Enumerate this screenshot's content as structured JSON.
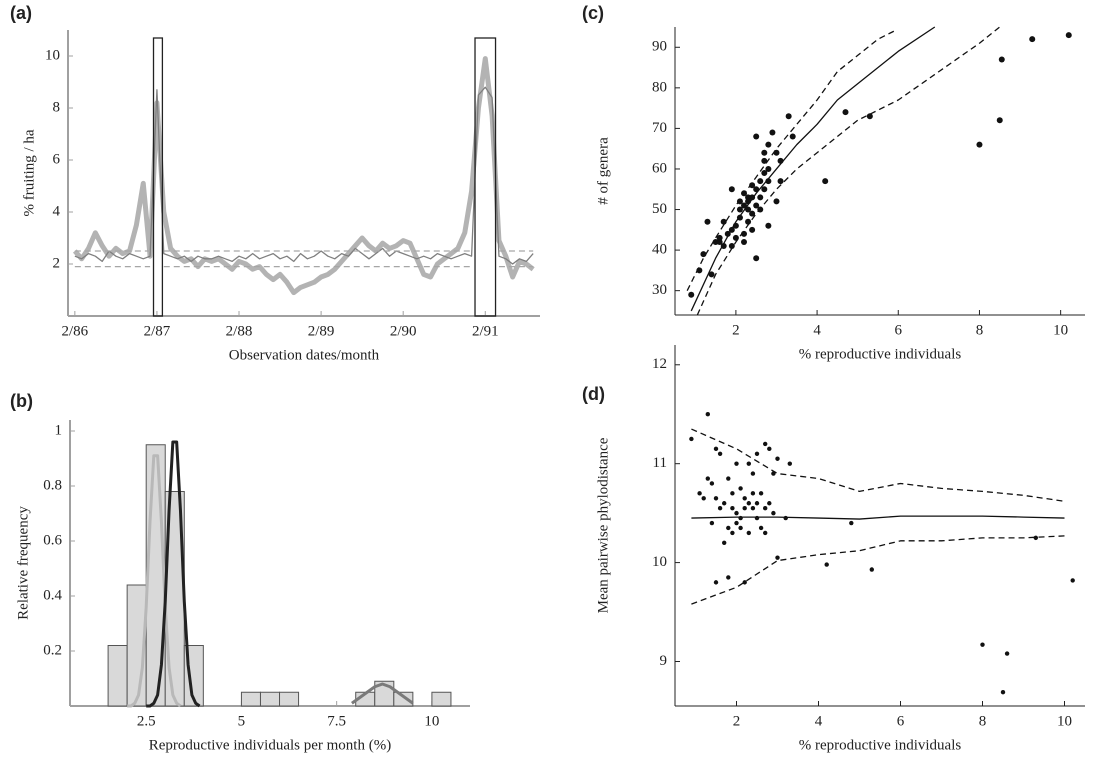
{
  "chart_data": [
    {
      "type": "line",
      "panel_label": "(a)",
      "x_label": "Observation dates/month",
      "y_label": "% fruiting / ha",
      "x": [
        0,
        1,
        2,
        3,
        4,
        5,
        6,
        7,
        8,
        9,
        10,
        11,
        12,
        13,
        14,
        15,
        16,
        17,
        18,
        19,
        20,
        21,
        22,
        23,
        24,
        25,
        26,
        27,
        28,
        29,
        30,
        31,
        32,
        33,
        34,
        35,
        36,
        37,
        38,
        39,
        40,
        41,
        42,
        43,
        44,
        45,
        46,
        47,
        48,
        49,
        50,
        51,
        52,
        53,
        54,
        55,
        56,
        57,
        58,
        59,
        60,
        61,
        62,
        63,
        64,
        65,
        66,
        67
      ],
      "xlim": [
        -1,
        68
      ],
      "xticks": [
        {
          "value": 0,
          "label": "2/86"
        },
        {
          "value": 12,
          "label": "2/87"
        },
        {
          "value": 24,
          "label": "2/88"
        },
        {
          "value": 36,
          "label": "2/89"
        },
        {
          "value": 48,
          "label": "2/90"
        },
        {
          "value": 60,
          "label": "2/91"
        }
      ],
      "ylim": [
        0,
        11
      ],
      "yticks": [
        2,
        4,
        6,
        8,
        10
      ],
      "highlights": [
        [
          11.5,
          12.8
        ],
        [
          58.5,
          61.5
        ]
      ],
      "series": [
        {
          "color": "#b3b3b3",
          "line_style": "thick",
          "values": [
            2.5,
            2.2,
            2.6,
            3.2,
            2.7,
            2.3,
            2.6,
            2.4,
            2.5,
            3.5,
            5.1,
            2.3,
            8.2,
            4.0,
            2.6,
            2.3,
            2.1,
            2.2,
            1.9,
            2.2,
            2.1,
            2.2,
            2.0,
            1.8,
            2.1,
            2.0,
            1.8,
            1.9,
            1.6,
            1.4,
            1.6,
            1.3,
            0.9,
            1.1,
            1.2,
            1.3,
            1.5,
            1.6,
            1.8,
            2.1,
            2.4,
            2.7,
            3.0,
            2.7,
            2.5,
            2.8,
            2.6,
            2.7,
            2.9,
            2.8,
            2.2,
            1.6,
            1.5,
            2.0,
            2.2,
            2.4,
            2.6,
            3.2,
            4.8,
            8.0,
            9.9,
            7.7,
            2.9,
            2.3,
            1.5,
            2.1,
            2.0,
            1.8
          ]
        },
        {
          "color": "#7f7f7f",
          "line_style": "thin",
          "values": [
            2.3,
            2.2,
            2.4,
            2.3,
            2.1,
            2.5,
            2.3,
            2.2,
            2.4,
            2.3,
            2.2,
            2.3,
            8.7,
            2.4,
            2.3,
            2.2,
            2.3,
            2.1,
            2.3,
            2.2,
            2.2,
            2.3,
            2.2,
            2.1,
            2.3,
            2.2,
            2.4,
            2.2,
            2.3,
            2.4,
            2.2,
            2.3,
            2.1,
            2.4,
            2.2,
            2.3,
            2.5,
            2.3,
            2.2,
            2.4,
            2.3,
            2.6,
            2.4,
            2.2,
            2.4,
            2.6,
            2.3,
            2.5,
            2.4,
            2.3,
            2.2,
            2.3,
            2.2,
            2.4,
            2.3,
            2.2,
            2.3,
            2.4,
            2.3,
            8.5,
            8.8,
            8.4,
            2.3,
            2.2,
            2.0,
            2.2,
            2.1,
            2.4
          ]
        },
        {
          "color": "#a6a6a6",
          "line_style": "dashed",
          "values": [
            2.5,
            2.5,
            2.5,
            2.5,
            2.5,
            2.5,
            2.5,
            2.5,
            2.5,
            2.5,
            2.5,
            2.5,
            null,
            2.5,
            2.5,
            2.5,
            2.5,
            2.5,
            2.5,
            2.5,
            2.5,
            2.5,
            2.5,
            2.5,
            2.5,
            2.5,
            2.5,
            2.5,
            2.5,
            2.5,
            2.5,
            2.5,
            2.5,
            2.5,
            2.5,
            2.5,
            2.5,
            2.5,
            2.5,
            2.5,
            2.5,
            2.5,
            2.5,
            2.5,
            2.5,
            2.5,
            2.5,
            2.5,
            2.5,
            2.5,
            2.5,
            2.5,
            2.5,
            2.5,
            2.5,
            2.5,
            2.5,
            2.5,
            2.5,
            null,
            null,
            null,
            2.5,
            2.5,
            2.5,
            2.5,
            2.5,
            2.5
          ]
        },
        {
          "color": "#a6a6a6",
          "line_style": "dashed",
          "values": [
            1.9,
            1.9,
            1.9,
            1.9,
            1.9,
            1.9,
            1.9,
            1.9,
            1.9,
            1.9,
            1.9,
            1.9,
            null,
            1.9,
            1.9,
            1.9,
            1.9,
            1.9,
            1.9,
            1.9,
            1.9,
            1.9,
            1.9,
            1.9,
            1.9,
            1.9,
            1.9,
            1.9,
            1.9,
            1.9,
            1.9,
            1.9,
            1.9,
            1.9,
            1.9,
            1.9,
            1.9,
            1.9,
            1.9,
            1.9,
            1.9,
            1.9,
            1.9,
            1.9,
            1.9,
            1.9,
            1.9,
            1.9,
            1.9,
            1.9,
            1.9,
            1.9,
            1.9,
            1.9,
            1.9,
            1.9,
            1.9,
            1.9,
            1.9,
            null,
            null,
            null,
            1.9,
            1.9,
            1.9,
            1.9,
            1.9,
            1.9
          ]
        }
      ]
    },
    {
      "type": "histogram",
      "panel_label": "(b)",
      "x_label": "Reproductive individuals per month (%)",
      "y_label": "Relative frequency",
      "bins": [
        1.5,
        2.0,
        2.5,
        3.0,
        3.5,
        4.0,
        4.5,
        5.0,
        5.5,
        6.0,
        6.5,
        7.0,
        7.5,
        8.0,
        8.5,
        9.0,
        9.5,
        10.0,
        10.5
      ],
      "values": [
        0.22,
        0.44,
        0.95,
        0.78,
        0.22,
        0,
        0,
        0.05,
        0.05,
        0.05,
        0,
        0,
        0,
        0.05,
        0.09,
        0.05,
        0,
        0.05
      ],
      "color": "#d9d9d9",
      "xlim": [
        0.5,
        11
      ],
      "xticks": [
        2.5,
        5,
        7.5,
        10
      ],
      "ylim": [
        0,
        1.04
      ],
      "yticks": [
        0.2,
        0.4,
        0.6,
        0.8,
        1
      ],
      "curves": [
        {
          "color": "#b8b8b8",
          "x": [
            2.0,
            2.1,
            2.2,
            2.3,
            2.4,
            2.5,
            2.6,
            2.7,
            2.8,
            2.9,
            3.0,
            3.1,
            3.2,
            3.3,
            3.4
          ],
          "values": [
            0,
            0,
            0.01,
            0.04,
            0.14,
            0.36,
            0.67,
            0.91,
            0.91,
            0.67,
            0.36,
            0.14,
            0.04,
            0.01,
            0
          ]
        },
        {
          "color": "#222222",
          "x": [
            2.5,
            2.6,
            2.7,
            2.8,
            2.9,
            3.0,
            3.1,
            3.2,
            3.3,
            3.4,
            3.5,
            3.6,
            3.7,
            3.8,
            3.9
          ],
          "values": [
            0,
            0,
            0.01,
            0.04,
            0.15,
            0.38,
            0.71,
            0.96,
            0.96,
            0.71,
            0.38,
            0.15,
            0.04,
            0.01,
            0
          ]
        },
        {
          "color": "#7a7a7a",
          "x": [
            7.9,
            8.1,
            8.3,
            8.5,
            8.7,
            8.9,
            9.1,
            9.3,
            9.5
          ],
          "values": [
            0.01,
            0.03,
            0.05,
            0.07,
            0.08,
            0.07,
            0.05,
            0.03,
            0.01
          ]
        }
      ]
    },
    {
      "type": "scatter",
      "panel_label": "(c)",
      "x_label": "% reproductive individuals",
      "y_label": "# of genera",
      "color": "#111111",
      "x": [
        0.9,
        1.1,
        1.2,
        1.3,
        1.4,
        1.5,
        1.6,
        1.6,
        1.7,
        1.7,
        1.8,
        1.9,
        1.9,
        1.9,
        2.0,
        2.0,
        2.1,
        2.1,
        2.1,
        2.2,
        2.2,
        2.2,
        2.2,
        2.3,
        2.3,
        2.3,
        2.3,
        2.4,
        2.4,
        2.4,
        2.4,
        2.5,
        2.5,
        2.5,
        2.5,
        2.6,
        2.6,
        2.6,
        2.7,
        2.7,
        2.7,
        2.7,
        2.8,
        2.8,
        2.8,
        2.8,
        2.9,
        3.0,
        3.0,
        3.1,
        3.1,
        3.3,
        3.4,
        4.2,
        4.7,
        5.3,
        8.0,
        8.5,
        8.55,
        9.3,
        10.2
      ],
      "values": [
        29,
        35,
        39,
        47,
        34,
        42,
        43,
        42,
        41,
        47,
        44,
        45,
        41,
        55,
        46,
        43,
        52,
        50,
        48,
        54,
        51,
        44,
        42,
        53,
        50,
        47,
        52,
        56,
        49,
        45,
        53,
        38,
        68,
        55,
        51,
        57,
        53,
        50,
        59,
        55,
        62,
        64,
        60,
        66,
        57,
        46,
        69,
        64,
        52,
        57,
        62,
        73,
        68,
        57,
        74,
        73,
        66,
        72,
        87,
        92,
        93
      ],
      "xlim": [
        0.5,
        10.6
      ],
      "xticks": [
        2,
        4,
        6,
        8,
        10
      ],
      "ylim": [
        24,
        95
      ],
      "yticks": [
        30,
        40,
        50,
        60,
        70,
        80,
        90
      ],
      "lines": [
        {
          "line_style": "solid",
          "x": [
            0.9,
            1.5,
            2,
            2.5,
            3,
            3.5,
            4,
            4.5,
            5,
            6,
            6.9
          ],
          "values": [
            25,
            38,
            47,
            54,
            60,
            66,
            71,
            77,
            81,
            89,
            95
          ]
        },
        {
          "line_style": "dashed",
          "x": [
            0.8,
            1.2,
            1.5,
            2,
            2.5,
            3,
            3.5,
            4,
            4.5,
            5,
            5.5,
            5.9
          ],
          "values": [
            30,
            38,
            43,
            51,
            58,
            65,
            71,
            77,
            84,
            88,
            92,
            94
          ]
        },
        {
          "line_style": "dashed",
          "x": [
            1.05,
            1.5,
            2,
            2.5,
            3,
            3.5,
            4,
            4.5,
            5,
            6,
            7,
            8,
            8.5
          ],
          "values": [
            24,
            34,
            42,
            49,
            55,
            60,
            64,
            68,
            72,
            77,
            84,
            91,
            95
          ]
        }
      ]
    },
    {
      "type": "scatter",
      "panel_label": "(d)",
      "x_label": "% reproductive individuals",
      "y_label": "Mean pairwise phylodistance",
      "color": "#111111",
      "x": [
        0.9,
        1.1,
        1.2,
        1.3,
        1.3,
        1.4,
        1.4,
        1.5,
        1.5,
        1.5,
        1.6,
        1.6,
        1.7,
        1.7,
        1.8,
        1.8,
        1.8,
        1.9,
        1.9,
        1.9,
        2.0,
        2.0,
        2.0,
        2.1,
        2.1,
        2.1,
        2.2,
        2.2,
        2.2,
        2.3,
        2.3,
        2.3,
        2.4,
        2.4,
        2.4,
        2.5,
        2.5,
        2.5,
        2.6,
        2.6,
        2.7,
        2.7,
        2.7,
        2.8,
        2.8,
        2.9,
        2.9,
        3.0,
        3.0,
        3.2,
        3.3,
        4.2,
        4.8,
        5.3,
        8.0,
        8.5,
        8.6,
        9.3,
        10.2
      ],
      "values": [
        11.25,
        10.7,
        10.65,
        11.5,
        10.85,
        10.4,
        10.8,
        11.15,
        10.65,
        9.8,
        10.55,
        11.1,
        10.6,
        10.2,
        10.85,
        10.35,
        9.85,
        10.7,
        10.55,
        10.3,
        11.0,
        10.5,
        10.4,
        10.45,
        10.35,
        10.75,
        9.8,
        10.65,
        10.55,
        11.0,
        10.6,
        10.3,
        10.7,
        10.55,
        10.9,
        11.1,
        10.6,
        10.45,
        10.7,
        10.35,
        11.2,
        10.55,
        10.3,
        11.15,
        10.6,
        10.9,
        10.5,
        10.05,
        11.05,
        10.45,
        11.0,
        9.98,
        10.4,
        9.93,
        9.17,
        8.69,
        9.08,
        10.25,
        9.82
      ],
      "xlim": [
        0.5,
        10.5
      ],
      "xticks": [
        2,
        4,
        6,
        8,
        10
      ],
      "ylim": [
        8.55,
        12.2
      ],
      "yticks": [
        9,
        10,
        11,
        12
      ],
      "lines": [
        {
          "line_style": "solid",
          "x": [
            0.9,
            2,
            3,
            4,
            5,
            6,
            7,
            8,
            9,
            10
          ],
          "values": [
            10.45,
            10.46,
            10.46,
            10.45,
            10.44,
            10.47,
            10.47,
            10.47,
            10.46,
            10.45
          ]
        },
        {
          "line_style": "dashed",
          "x": [
            0.9,
            2,
            3,
            4,
            5,
            6,
            7,
            8,
            9,
            10
          ],
          "values": [
            11.35,
            11.15,
            10.9,
            10.85,
            10.72,
            10.8,
            10.75,
            10.72,
            10.68,
            10.62
          ]
        },
        {
          "line_style": "dashed",
          "x": [
            0.9,
            2,
            3,
            4,
            5,
            6,
            7,
            8,
            9,
            10
          ],
          "values": [
            9.58,
            9.75,
            10.02,
            10.08,
            10.12,
            10.22,
            10.22,
            10.25,
            10.25,
            10.27
          ]
        }
      ]
    }
  ]
}
